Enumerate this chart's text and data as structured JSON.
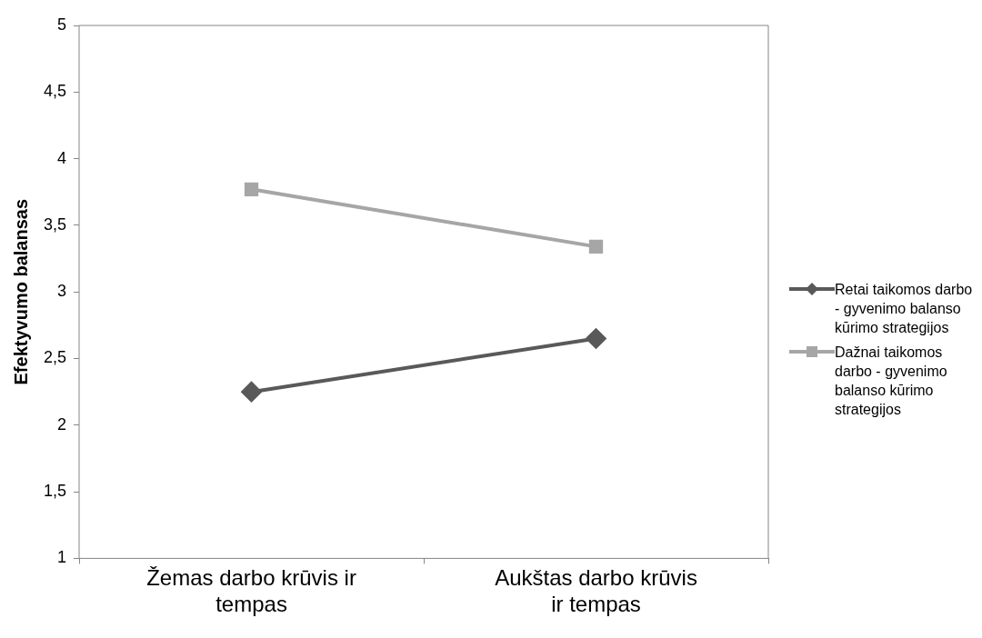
{
  "chart_data": {
    "type": "line",
    "ylabel": "Efektyvumo balansas",
    "categories": [
      "Žemas darbo krūvis ir tempas",
      "Aukštas darbo krūvis ir tempas"
    ],
    "series": [
      {
        "name": "Retai taikomos darbo - gyvenimo balanso kūrimo strategijos",
        "color": "#595959",
        "values": [
          2.25,
          2.65
        ],
        "marker": "diamond"
      },
      {
        "name": "Dažnai taikomos darbo - gyvenimo balanso kūrimo strategijos",
        "color": "#a6a6a6",
        "values": [
          3.77,
          3.34
        ],
        "marker": "square"
      }
    ],
    "ylim": [
      1,
      5
    ],
    "yticks": [
      1,
      {
        "value": 1.5,
        "label": "1,5"
      },
      2,
      {
        "value": 2.5,
        "label": "2,5"
      },
      3,
      {
        "value": 3.5,
        "label": "3,5"
      },
      4,
      {
        "value": 4.5,
        "label": "4,5"
      },
      5
    ],
    "grid": false,
    "legend": "right",
    "line_style": "solid"
  }
}
